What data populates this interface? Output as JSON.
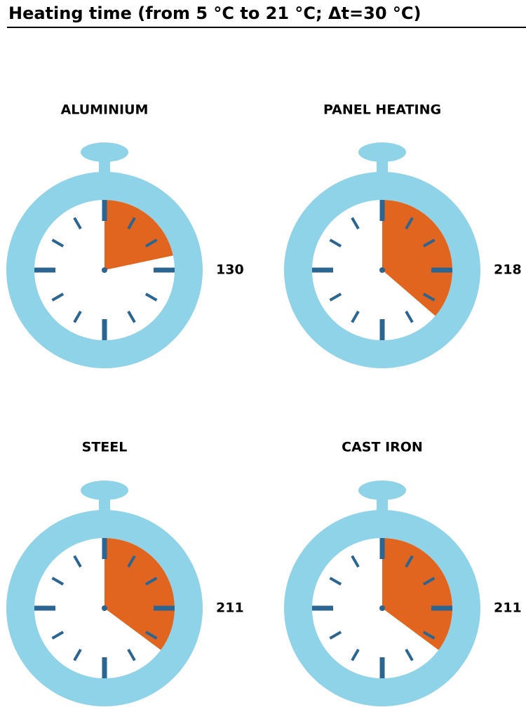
{
  "title": "Heating time (from 5 °C to 21 °C; Δt=30 °C)",
  "colors": {
    "body": "#8fd3e8",
    "face": "#ffffff",
    "fill": "#e2651f",
    "tick": "#2b6592"
  },
  "chart_data": {
    "type": "pie",
    "max_value": 600,
    "items": [
      {
        "label": "ALUMINIUM",
        "value": 130,
        "value_label": "130"
      },
      {
        "label": "PANEL HEATING",
        "value": 218,
        "value_label": "218"
      },
      {
        "label": "STEEL",
        "value": 211,
        "value_label": "211"
      },
      {
        "label": "CAST IRON",
        "value": 211,
        "value_label": "211"
      }
    ]
  }
}
